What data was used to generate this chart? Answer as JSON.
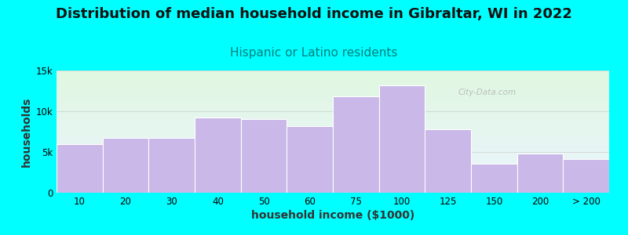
{
  "title": "Distribution of median household income in Gibraltar, WI in 2022",
  "subtitle": "Hispanic or Latino residents",
  "xlabel": "household income ($1000)",
  "ylabel": "households",
  "background_outer": "#00FFFF",
  "background_inner": "#f0f8ee",
  "bar_color": "#C9B8E8",
  "bar_edge_color": "#ffffff",
  "bar_categories": [
    "10",
    "20",
    "30",
    "40",
    "50",
    "60",
    "75",
    "100",
    "125",
    "150",
    "200",
    "> 200"
  ],
  "bar_values": [
    6000,
    6700,
    6700,
    9200,
    9000,
    8200,
    11800,
    13200,
    7800,
    3600,
    4800,
    4100
  ],
  "ylim": [
    0,
    15000
  ],
  "ytick_values": [
    0,
    5000,
    10000,
    15000
  ],
  "title_fontsize": 13,
  "subtitle_fontsize": 11,
  "subtitle_color": "#008080",
  "axis_label_fontsize": 10,
  "tick_fontsize": 8.5,
  "watermark_text": "City-Data.com",
  "watermark_color": "#b0b8b0",
  "title_color": "#111111"
}
